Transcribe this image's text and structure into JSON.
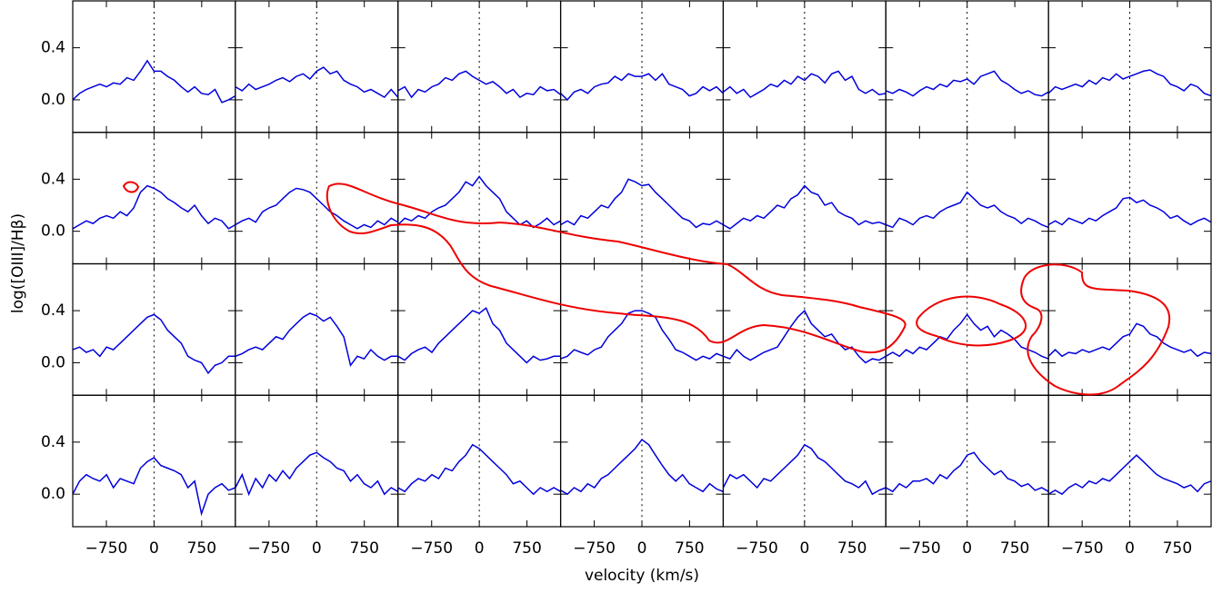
{
  "chart_data": {
    "type": "line",
    "color": "#0000dd",
    "columns": 7,
    "xlabel": "velocity (km/s)",
    "ylabel": "log([OIII]/Hβ)",
    "xlim": [
      -1280,
      1280
    ],
    "ylim": [
      -0.25,
      0.76
    ],
    "xticks": [
      {
        "value": -750,
        "label": "−750"
      },
      0,
      750
    ],
    "yticks": [
      {
        "value": 0,
        "label": "0.0"
      },
      0.4
    ],
    "x": [
      -1280,
      -1173,
      -1067,
      -960,
      -853,
      -747,
      -640,
      -533,
      -427,
      -320,
      -213,
      -107,
      0,
      107,
      213,
      320,
      427,
      533,
      640,
      747,
      853,
      960,
      1067,
      1173,
      1280
    ],
    "panels": [
      {
        "values": [
          0.0,
          0.05,
          0.08,
          0.1,
          0.12,
          0.1,
          0.13,
          0.12,
          0.17,
          0.15,
          0.22,
          0.3,
          0.22,
          0.22,
          0.18,
          0.15,
          0.1,
          0.06,
          0.1,
          0.05,
          0.04,
          0.08,
          -0.02,
          0.0,
          0.03
        ]
      },
      {
        "values": [
          0.1,
          0.07,
          0.12,
          0.08,
          0.1,
          0.12,
          0.15,
          0.17,
          0.14,
          0.18,
          0.2,
          0.16,
          0.22,
          0.25,
          0.2,
          0.22,
          0.15,
          0.12,
          0.1,
          0.06,
          0.08,
          0.05,
          0.02,
          0.08,
          0.02
        ]
      },
      {
        "values": [
          0.07,
          0.1,
          0.02,
          0.08,
          0.06,
          0.1,
          0.12,
          0.17,
          0.15,
          0.2,
          0.22,
          0.18,
          0.15,
          0.12,
          0.14,
          0.1,
          0.05,
          0.08,
          0.02,
          0.05,
          0.04,
          0.1,
          0.07,
          0.08,
          0.04
        ]
      },
      {
        "values": [
          0.05,
          0.0,
          0.06,
          0.08,
          0.05,
          0.1,
          0.12,
          0.13,
          0.18,
          0.15,
          0.2,
          0.18,
          0.18,
          0.2,
          0.15,
          0.2,
          0.12,
          0.1,
          0.08,
          0.03,
          0.05,
          0.1,
          0.07,
          0.1,
          0.05
        ]
      },
      {
        "values": [
          0.06,
          0.1,
          0.05,
          0.08,
          0.02,
          0.05,
          0.08,
          0.12,
          0.1,
          0.15,
          0.12,
          0.18,
          0.15,
          0.2,
          0.18,
          0.13,
          0.2,
          0.22,
          0.15,
          0.18,
          0.08,
          0.05,
          0.08,
          0.04,
          0.05
        ]
      },
      {
        "values": [
          0.07,
          0.05,
          0.08,
          0.06,
          0.03,
          0.07,
          0.1,
          0.08,
          0.12,
          0.1,
          0.15,
          0.14,
          0.16,
          0.12,
          0.18,
          0.2,
          0.22,
          0.15,
          0.12,
          0.08,
          0.05,
          0.07,
          0.04,
          0.03,
          0.06
        ]
      },
      {
        "values": [
          0.05,
          0.1,
          0.08,
          0.1,
          0.12,
          0.1,
          0.15,
          0.12,
          0.17,
          0.15,
          0.2,
          0.16,
          0.18,
          0.2,
          0.22,
          0.23,
          0.2,
          0.18,
          0.12,
          0.1,
          0.07,
          0.12,
          0.1,
          0.05,
          0.03
        ]
      },
      {
        "values": [
          0.02,
          0.05,
          0.08,
          0.06,
          0.1,
          0.12,
          0.1,
          0.15,
          0.12,
          0.18,
          0.3,
          0.35,
          0.33,
          0.3,
          0.25,
          0.22,
          0.18,
          0.15,
          0.2,
          0.12,
          0.06,
          0.1,
          0.08,
          0.02,
          0.05
        ]
      },
      {
        "values": [
          0.05,
          0.08,
          0.1,
          0.07,
          0.15,
          0.18,
          0.2,
          0.25,
          0.3,
          0.33,
          0.32,
          0.3,
          0.25,
          0.2,
          0.15,
          0.12,
          0.08,
          0.05,
          0.02,
          0.05,
          0.03,
          0.08,
          0.05,
          0.1,
          0.07
        ]
      },
      {
        "values": [
          0.05,
          0.1,
          0.08,
          0.12,
          0.1,
          0.15,
          0.18,
          0.2,
          0.25,
          0.3,
          0.38,
          0.35,
          0.42,
          0.35,
          0.3,
          0.25,
          0.15,
          0.1,
          0.05,
          0.08,
          0.03,
          0.06,
          0.1,
          0.05,
          0.08
        ]
      },
      {
        "values": [
          0.05,
          0.08,
          0.05,
          0.12,
          0.1,
          0.15,
          0.2,
          0.18,
          0.25,
          0.3,
          0.4,
          0.38,
          0.35,
          0.36,
          0.3,
          0.25,
          0.2,
          0.15,
          0.1,
          0.08,
          0.03,
          0.06,
          0.05,
          0.08,
          0.05
        ]
      },
      {
        "values": [
          0.05,
          0.02,
          0.06,
          0.1,
          0.08,
          0.12,
          0.1,
          0.15,
          0.2,
          0.18,
          0.25,
          0.28,
          0.35,
          0.3,
          0.28,
          0.2,
          0.22,
          0.15,
          0.12,
          0.1,
          0.05,
          0.08,
          0.06,
          0.07,
          0.05
        ]
      },
      {
        "values": [
          0.05,
          0.03,
          0.1,
          0.08,
          0.05,
          0.1,
          0.12,
          0.1,
          0.15,
          0.18,
          0.2,
          0.22,
          0.3,
          0.25,
          0.2,
          0.18,
          0.2,
          0.15,
          0.12,
          0.1,
          0.06,
          0.1,
          0.08,
          0.05,
          0.03
        ]
      },
      {
        "values": [
          0.05,
          0.08,
          0.05,
          0.1,
          0.08,
          0.06,
          0.1,
          0.08,
          0.12,
          0.15,
          0.18,
          0.25,
          0.26,
          0.22,
          0.24,
          0.2,
          0.18,
          0.15,
          0.1,
          0.12,
          0.08,
          0.05,
          0.08,
          0.1,
          0.07
        ]
      },
      {
        "values": [
          0.1,
          0.12,
          0.08,
          0.1,
          0.05,
          0.12,
          0.1,
          0.15,
          0.2,
          0.25,
          0.3,
          0.35,
          0.37,
          0.33,
          0.25,
          0.2,
          0.15,
          0.05,
          0.02,
          0.0,
          -0.08,
          -0.02,
          0.0,
          0.05,
          0.05
        ]
      },
      {
        "values": [
          0.05,
          0.07,
          0.1,
          0.12,
          0.1,
          0.15,
          0.2,
          0.18,
          0.25,
          0.3,
          0.35,
          0.38,
          0.36,
          0.32,
          0.35,
          0.28,
          0.2,
          -0.02,
          0.05,
          0.03,
          0.1,
          0.05,
          0.02,
          0.05,
          0.05
        ]
      },
      {
        "values": [
          0.05,
          0.02,
          0.07,
          0.1,
          0.12,
          0.08,
          0.15,
          0.2,
          0.25,
          0.3,
          0.35,
          0.4,
          0.38,
          0.42,
          0.3,
          0.25,
          0.15,
          0.1,
          0.05,
          0.0,
          0.05,
          0.02,
          0.03,
          0.05,
          0.05
        ]
      },
      {
        "values": [
          0.03,
          0.05,
          0.1,
          0.08,
          0.06,
          0.1,
          0.12,
          0.2,
          0.25,
          0.3,
          0.38,
          0.4,
          0.4,
          0.38,
          0.35,
          0.25,
          0.18,
          0.1,
          0.08,
          0.05,
          0.02,
          0.05,
          0.03,
          0.07,
          0.05
        ]
      },
      {
        "values": [
          0.05,
          0.03,
          0.1,
          0.05,
          0.02,
          0.05,
          0.08,
          0.1,
          0.12,
          0.2,
          0.28,
          0.35,
          0.4,
          0.3,
          0.25,
          0.2,
          0.22,
          0.15,
          0.1,
          0.12,
          0.05,
          0.0,
          0.03,
          0.02,
          0.05
        ]
      },
      {
        "values": [
          0.05,
          0.08,
          0.05,
          0.1,
          0.07,
          0.12,
          0.1,
          0.15,
          0.2,
          0.18,
          0.25,
          0.3,
          0.37,
          0.3,
          0.25,
          0.28,
          0.2,
          0.25,
          0.22,
          0.18,
          0.12,
          0.1,
          0.08,
          0.05,
          0.03
        ]
      },
      {
        "values": [
          0.05,
          0.1,
          0.05,
          0.08,
          0.07,
          0.1,
          0.08,
          0.1,
          0.12,
          0.1,
          0.15,
          0.2,
          0.22,
          0.3,
          0.28,
          0.22,
          0.2,
          0.15,
          0.12,
          0.1,
          0.08,
          0.1,
          0.05,
          0.08,
          0.07
        ]
      },
      {
        "values": [
          0.0,
          0.1,
          0.15,
          0.12,
          0.1,
          0.15,
          0.05,
          0.12,
          0.1,
          0.08,
          0.2,
          0.25,
          0.28,
          0.22,
          0.2,
          0.18,
          0.15,
          0.05,
          0.1,
          -0.15,
          0.0,
          0.05,
          0.08,
          0.03,
          0.05
        ]
      },
      {
        "values": [
          0.05,
          0.15,
          0.0,
          0.12,
          0.05,
          0.15,
          0.1,
          0.18,
          0.12,
          0.2,
          0.25,
          0.3,
          0.32,
          0.28,
          0.25,
          0.2,
          0.18,
          0.1,
          0.15,
          0.08,
          0.05,
          0.1,
          0.0,
          0.05,
          0.02
        ]
      },
      {
        "values": [
          0.05,
          0.02,
          0.08,
          0.12,
          0.1,
          0.15,
          0.12,
          0.2,
          0.18,
          0.25,
          0.3,
          0.38,
          0.35,
          0.3,
          0.25,
          0.2,
          0.15,
          0.08,
          0.1,
          0.05,
          0.0,
          0.05,
          0.02,
          0.05,
          0.02
        ]
      },
      {
        "values": [
          0.03,
          0.0,
          0.05,
          0.02,
          0.08,
          0.05,
          0.12,
          0.15,
          0.2,
          0.25,
          0.3,
          0.35,
          0.42,
          0.38,
          0.3,
          0.22,
          0.15,
          0.1,
          0.15,
          0.08,
          0.05,
          0.02,
          0.08,
          0.04,
          0.02
        ]
      },
      {
        "values": [
          0.05,
          0.15,
          0.12,
          0.15,
          0.1,
          0.05,
          0.12,
          0.1,
          0.15,
          0.2,
          0.25,
          0.3,
          0.38,
          0.35,
          0.28,
          0.25,
          0.2,
          0.15,
          0.1,
          0.08,
          0.05,
          0.1,
          0.0,
          0.03,
          0.05
        ]
      },
      {
        "values": [
          0.05,
          0.02,
          0.08,
          0.05,
          0.1,
          0.1,
          0.12,
          0.08,
          0.15,
          0.12,
          0.18,
          0.22,
          0.3,
          0.32,
          0.25,
          0.2,
          0.15,
          0.18,
          0.12,
          0.1,
          0.06,
          0.08,
          0.03,
          0.05,
          0.02
        ]
      },
      {
        "values": [
          0.0,
          0.03,
          0.0,
          0.05,
          0.08,
          0.05,
          0.1,
          0.08,
          0.12,
          0.1,
          0.15,
          0.2,
          0.25,
          0.3,
          0.25,
          0.2,
          0.15,
          0.12,
          0.1,
          0.08,
          0.05,
          0.07,
          0.02,
          0.08,
          0.1
        ]
      }
    ]
  }
}
